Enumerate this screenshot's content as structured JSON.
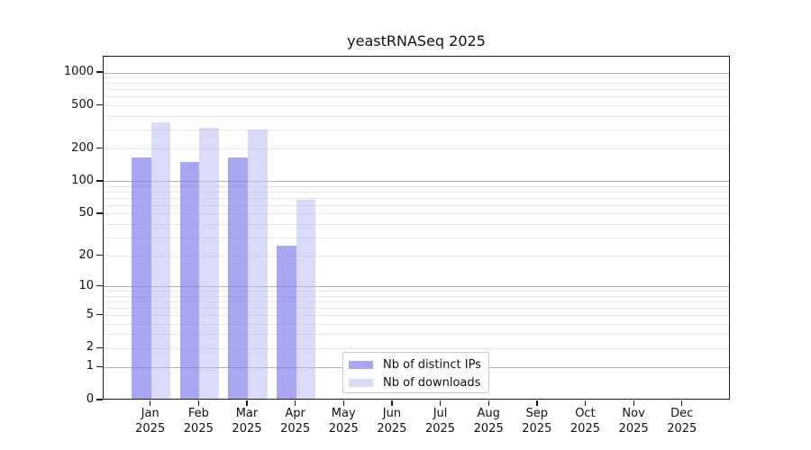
{
  "window": {
    "background": "#ffffff"
  },
  "chart_data": {
    "type": "bar",
    "title": "yeastRNASeq 2025",
    "xlabel": "",
    "ylabel": "",
    "yscale": "log1p",
    "ylim": [
      0,
      1400
    ],
    "grid": true,
    "yticks": [
      1000,
      500,
      200,
      100,
      50,
      20,
      10,
      5,
      2,
      1,
      0
    ],
    "gridlines": {
      "major": [
        1,
        10,
        100,
        1000
      ],
      "minor": [
        2,
        3,
        4,
        5,
        6,
        7,
        8,
        9,
        20,
        30,
        40,
        50,
        60,
        70,
        80,
        90,
        200,
        300,
        400,
        500,
        600,
        700,
        800,
        900
      ]
    },
    "categories": [
      {
        "month": "Jan",
        "year": "2025"
      },
      {
        "month": "Feb",
        "year": "2025"
      },
      {
        "month": "Mar",
        "year": "2025"
      },
      {
        "month": "Apr",
        "year": "2025"
      },
      {
        "month": "May",
        "year": "2025"
      },
      {
        "month": "Jun",
        "year": "2025"
      },
      {
        "month": "Jul",
        "year": "2025"
      },
      {
        "month": "Aug",
        "year": "2025"
      },
      {
        "month": "Sep",
        "year": "2025"
      },
      {
        "month": "Oct",
        "year": "2025"
      },
      {
        "month": "Nov",
        "year": "2025"
      },
      {
        "month": "Dec",
        "year": "2025"
      }
    ],
    "series": [
      {
        "name": "Nb of distinct IPs",
        "color": "rgba(122,122,236,0.66)",
        "values": [
          160,
          145,
          162,
          24,
          0,
          0,
          0,
          0,
          0,
          0,
          0,
          0
        ]
      },
      {
        "name": "Nb of downloads",
        "color": "rgba(182,184,244,0.5)",
        "values": [
          340,
          300,
          292,
          66,
          0,
          0,
          0,
          0,
          0,
          0,
          0,
          0
        ]
      }
    ],
    "legend_position": "inside-bottom-center",
    "colors": {
      "axis": "#1a1a1a",
      "grid_major": "#b2b2b2",
      "grid_minor": "#e7e7e7",
      "text": "#111111"
    }
  }
}
